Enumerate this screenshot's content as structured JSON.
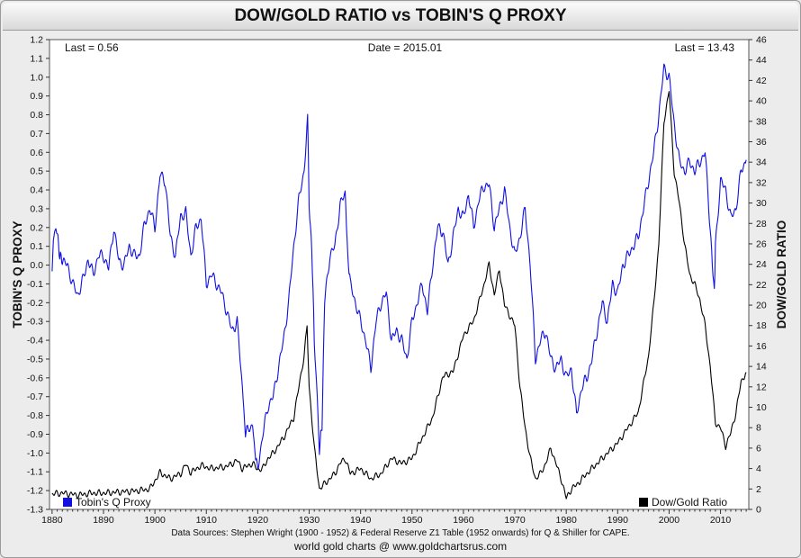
{
  "header": {
    "title": "DOW/GOLD RATIO vs TOBIN'S Q PROXY"
  },
  "annotations": {
    "left_last": "Last = 0.56",
    "date": "Date = 2015.01",
    "right_last": "Last = 13.43"
  },
  "footer": {
    "sources": "Data Sources: Stephen Wright (1900 - 1952) & Federal Reserve Z1 Table (1952 onwards) for Q & Shiller for CAPE.",
    "credit": "world gold charts @ www.goldchartsrus.com"
  },
  "colors": {
    "q_series": "#1010e0",
    "dowgold_series": "#000000",
    "plot_bg": "#ffffff"
  },
  "chart_data": {
    "type": "line",
    "ylabel_left": "TOBIN'S Q PROXY",
    "ylabel_right": "DOW/GOLD RATIO",
    "xlim": [
      1879.5,
      2015.5
    ],
    "ylim_left": [
      -1.3,
      1.2
    ],
    "ylim_right": [
      0,
      46
    ],
    "x_ticks": [
      1880,
      1890,
      1900,
      1910,
      1920,
      1930,
      1940,
      1950,
      1960,
      1970,
      1980,
      1990,
      2000,
      2010
    ],
    "y_left_ticks": [
      -1.3,
      -1.2,
      -1.1,
      -1.0,
      -0.9,
      -0.8,
      -0.7,
      -0.6,
      -0.5,
      -0.4,
      -0.3,
      -0.2,
      -0.1,
      0.0,
      0.1,
      0.2,
      0.3,
      0.4,
      0.5,
      0.6,
      0.7,
      0.8,
      0.9,
      1.0,
      1.1,
      1.2
    ],
    "y_right_ticks": [
      0,
      2,
      4,
      6,
      8,
      10,
      12,
      14,
      16,
      18,
      20,
      22,
      24,
      26,
      28,
      30,
      32,
      34,
      36,
      38,
      40,
      42,
      44,
      46
    ],
    "grid": false,
    "series": [
      {
        "name": "Tobin's Q Proxy",
        "axis": "left",
        "points": [
          [
            1880,
            0.0
          ],
          [
            1880.5,
            0.2
          ],
          [
            1881,
            0.17
          ],
          [
            1881.5,
            0.05
          ],
          [
            1882,
            0.02
          ],
          [
            1883,
            0.0
          ],
          [
            1884,
            -0.1
          ],
          [
            1885,
            -0.16
          ],
          [
            1886,
            -0.08
          ],
          [
            1887,
            0.03
          ],
          [
            1888,
            -0.05
          ],
          [
            1889,
            0.05
          ],
          [
            1890,
            0.05
          ],
          [
            1891,
            -0.02
          ],
          [
            1892,
            0.2
          ],
          [
            1893,
            0.02
          ],
          [
            1894,
            0.0
          ],
          [
            1895,
            0.1
          ],
          [
            1896,
            0.05
          ],
          [
            1897,
            0.05
          ],
          [
            1898,
            0.22
          ],
          [
            1899,
            0.3
          ],
          [
            1900,
            0.2
          ],
          [
            1901,
            0.48
          ],
          [
            1902,
            0.45
          ],
          [
            1903,
            0.15
          ],
          [
            1904,
            0.05
          ],
          [
            1905,
            0.26
          ],
          [
            1906,
            0.28
          ],
          [
            1907,
            0.05
          ],
          [
            1908,
            0.2
          ],
          [
            1909,
            0.25
          ],
          [
            1910,
            -0.1
          ],
          [
            1911,
            -0.05
          ],
          [
            1912,
            -0.1
          ],
          [
            1913,
            -0.15
          ],
          [
            1914,
            -0.25
          ],
          [
            1915,
            -0.35
          ],
          [
            1916,
            -0.3
          ],
          [
            1917,
            -0.65
          ],
          [
            1917.6,
            -0.9
          ],
          [
            1918,
            -0.88
          ],
          [
            1919,
            -0.85
          ],
          [
            1919.6,
            -1.02
          ],
          [
            1920,
            -1.08
          ],
          [
            1921,
            -0.9
          ],
          [
            1922,
            -0.75
          ],
          [
            1923,
            -0.7
          ],
          [
            1924,
            -0.55
          ],
          [
            1925,
            -0.4
          ],
          [
            1926,
            -0.2
          ],
          [
            1927,
            0.1
          ],
          [
            1928,
            0.35
          ],
          [
            1929,
            0.5
          ],
          [
            1929.7,
            0.78
          ],
          [
            1930,
            0.3
          ],
          [
            1930.5,
            0.1
          ],
          [
            1931,
            -0.4
          ],
          [
            1932,
            -0.98
          ],
          [
            1932.5,
            -0.85
          ],
          [
            1933,
            -0.2
          ],
          [
            1934,
            0.05
          ],
          [
            1935,
            0.1
          ],
          [
            1936,
            0.32
          ],
          [
            1937,
            0.38
          ],
          [
            1937.5,
            0.05
          ],
          [
            1938,
            -0.1
          ],
          [
            1939,
            -0.2
          ],
          [
            1940,
            -0.3
          ],
          [
            1941,
            -0.4
          ],
          [
            1942,
            -0.55
          ],
          [
            1943,
            -0.3
          ],
          [
            1944,
            -0.2
          ],
          [
            1945,
            -0.15
          ],
          [
            1946,
            -0.4
          ],
          [
            1947,
            -0.35
          ],
          [
            1948,
            -0.4
          ],
          [
            1949,
            -0.5
          ],
          [
            1950,
            -0.3
          ],
          [
            1951,
            -0.2
          ],
          [
            1952,
            -0.1
          ],
          [
            1953,
            -0.25
          ],
          [
            1954,
            0.0
          ],
          [
            1955,
            0.2
          ],
          [
            1956,
            0.18
          ],
          [
            1957,
            0.0
          ],
          [
            1958,
            0.15
          ],
          [
            1959,
            0.3
          ],
          [
            1960,
            0.25
          ],
          [
            1961,
            0.38
          ],
          [
            1962,
            0.2
          ],
          [
            1963,
            0.35
          ],
          [
            1964,
            0.42
          ],
          [
            1965,
            0.43
          ],
          [
            1966,
            0.2
          ],
          [
            1967,
            0.3
          ],
          [
            1968,
            0.4
          ],
          [
            1969,
            0.2
          ],
          [
            1970,
            0.05
          ],
          [
            1971,
            0.15
          ],
          [
            1972,
            0.3
          ],
          [
            1973,
            0.0
          ],
          [
            1974,
            -0.5
          ],
          [
            1975,
            -0.4
          ],
          [
            1976,
            -0.35
          ],
          [
            1977,
            -0.5
          ],
          [
            1978,
            -0.55
          ],
          [
            1979,
            -0.5
          ],
          [
            1980,
            -0.6
          ],
          [
            1981,
            -0.55
          ],
          [
            1982,
            -0.8
          ],
          [
            1983,
            -0.65
          ],
          [
            1984,
            -0.6
          ],
          [
            1985,
            -0.5
          ],
          [
            1986,
            -0.35
          ],
          [
            1987,
            -0.2
          ],
          [
            1988,
            -0.3
          ],
          [
            1989,
            -0.1
          ],
          [
            1990,
            -0.15
          ],
          [
            1991,
            0.0
          ],
          [
            1992,
            0.05
          ],
          [
            1993,
            0.1
          ],
          [
            1994,
            0.15
          ],
          [
            1995,
            0.3
          ],
          [
            1996,
            0.45
          ],
          [
            1997,
            0.6
          ],
          [
            1998,
            0.8
          ],
          [
            1999,
            1.05
          ],
          [
            2000,
            1.0
          ],
          [
            2001,
            0.75
          ],
          [
            2002,
            0.55
          ],
          [
            2003,
            0.5
          ],
          [
            2004,
            0.55
          ],
          [
            2005,
            0.5
          ],
          [
            2006,
            0.55
          ],
          [
            2007,
            0.6
          ],
          [
            2008,
            0.2
          ],
          [
            2008.8,
            -0.15
          ],
          [
            2009,
            0.1
          ],
          [
            2010,
            0.45
          ],
          [
            2011,
            0.4
          ],
          [
            2012,
            0.25
          ],
          [
            2013,
            0.3
          ],
          [
            2014,
            0.5
          ],
          [
            2015,
            0.56
          ]
        ]
      },
      {
        "name": "Dow/Gold Ratio",
        "axis": "right",
        "points": [
          [
            1880,
            1.5
          ],
          [
            1882,
            1.6
          ],
          [
            1885,
            1.4
          ],
          [
            1888,
            1.6
          ],
          [
            1890,
            1.6
          ],
          [
            1893,
            1.7
          ],
          [
            1896,
            1.8
          ],
          [
            1899,
            2.0
          ],
          [
            1901,
            3.6
          ],
          [
            1903,
            3.0
          ],
          [
            1905,
            3.5
          ],
          [
            1906,
            4.4
          ],
          [
            1907,
            3.6
          ],
          [
            1909,
            4.3
          ],
          [
            1911,
            4.0
          ],
          [
            1914,
            4.2
          ],
          [
            1916,
            4.8
          ],
          [
            1917,
            4.0
          ],
          [
            1919,
            4.5
          ],
          [
            1920,
            3.9
          ],
          [
            1921,
            4.0
          ],
          [
            1922,
            5.0
          ],
          [
            1923,
            5.5
          ],
          [
            1925,
            7.0
          ],
          [
            1927,
            9.0
          ],
          [
            1928,
            12.0
          ],
          [
            1929,
            15.0
          ],
          [
            1929.6,
            18.0
          ],
          [
            1930,
            12.0
          ],
          [
            1931,
            6.0
          ],
          [
            1932,
            2.0
          ],
          [
            1933,
            2.5
          ],
          [
            1934,
            3.0
          ],
          [
            1935,
            3.5
          ],
          [
            1936,
            4.5
          ],
          [
            1937,
            5.0
          ],
          [
            1938,
            3.5
          ],
          [
            1940,
            4.0
          ],
          [
            1942,
            3.0
          ],
          [
            1944,
            3.5
          ],
          [
            1946,
            5.0
          ],
          [
            1948,
            4.5
          ],
          [
            1950,
            5.0
          ],
          [
            1952,
            7.0
          ],
          [
            1954,
            9.0
          ],
          [
            1956,
            13.0
          ],
          [
            1958,
            13.5
          ],
          [
            1960,
            17.0
          ],
          [
            1962,
            18.5
          ],
          [
            1964,
            22.0
          ],
          [
            1965,
            24.0
          ],
          [
            1966,
            21.0
          ],
          [
            1967,
            23.5
          ],
          [
            1968,
            20.0
          ],
          [
            1969,
            19.0
          ],
          [
            1970,
            18.0
          ],
          [
            1971,
            12.0
          ],
          [
            1972,
            8.0
          ],
          [
            1973,
            5.0
          ],
          [
            1974,
            3.0
          ],
          [
            1975,
            3.5
          ],
          [
            1976,
            4.5
          ],
          [
            1977,
            6.0
          ],
          [
            1978,
            4.5
          ],
          [
            1979,
            3.0
          ],
          [
            1980,
            1.1
          ],
          [
            1981,
            2.0
          ],
          [
            1982,
            2.4
          ],
          [
            1984,
            3.5
          ],
          [
            1986,
            4.5
          ],
          [
            1988,
            5.5
          ],
          [
            1990,
            6.5
          ],
          [
            1992,
            8.0
          ],
          [
            1994,
            9.5
          ],
          [
            1996,
            15.0
          ],
          [
            1997,
            20.0
          ],
          [
            1998,
            26.0
          ],
          [
            1999,
            38.0
          ],
          [
            2000,
            41.0
          ],
          [
            2001,
            33.0
          ],
          [
            2002,
            30.0
          ],
          [
            2003,
            26.0
          ],
          [
            2004,
            23.0
          ],
          [
            2005,
            22.0
          ],
          [
            2006,
            20.5
          ],
          [
            2007,
            18.0
          ],
          [
            2008,
            14.0
          ],
          [
            2009,
            8.5
          ],
          [
            2010,
            8.0
          ],
          [
            2011,
            6.2
          ],
          [
            2012,
            7.5
          ],
          [
            2013,
            9.5
          ],
          [
            2014,
            12.5
          ],
          [
            2015,
            13.43
          ]
        ]
      }
    ],
    "legend": [
      {
        "label": "Tobin's Q Proxy",
        "position": "bottom-left"
      },
      {
        "label": "Dow/Gold Ratio",
        "position": "bottom-right"
      }
    ]
  }
}
